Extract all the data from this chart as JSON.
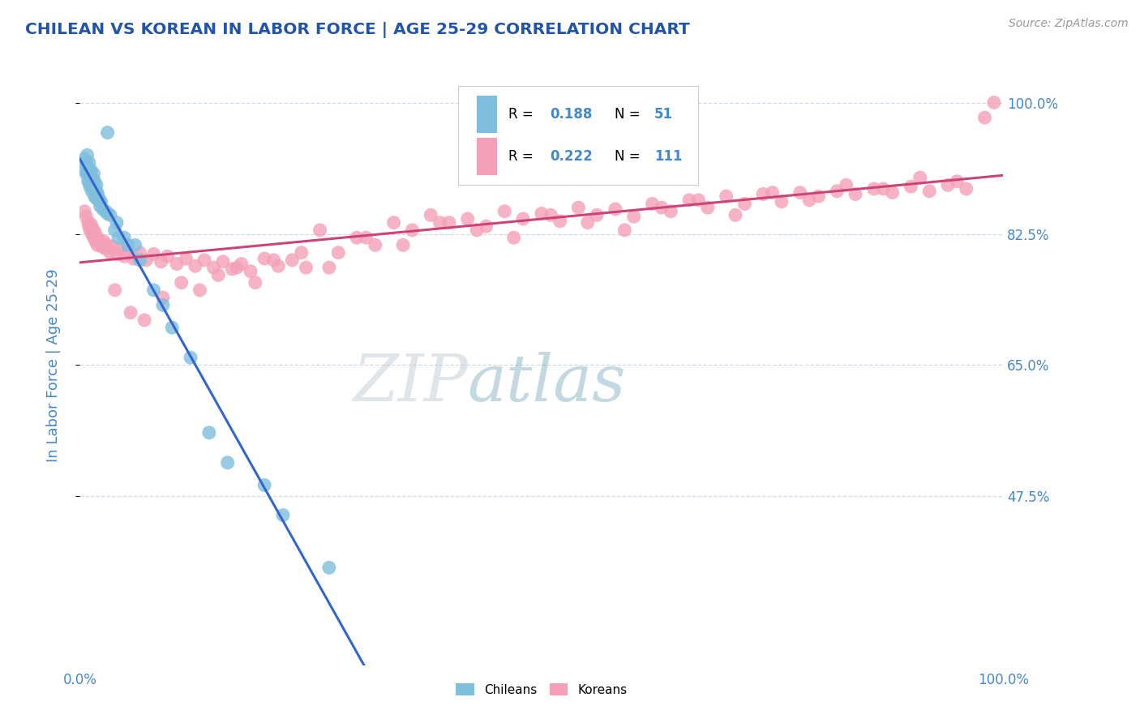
{
  "title": "CHILEAN VS KOREAN IN LABOR FORCE | AGE 25-29 CORRELATION CHART",
  "source_text": "Source: ZipAtlas.com",
  "ylabel": "In Labor Force | Age 25-29",
  "xlim": [
    0.0,
    1.0
  ],
  "ylim": [
    0.25,
    1.05
  ],
  "yticks": [
    0.475,
    0.65,
    0.825,
    1.0
  ],
  "ytick_labels": [
    "47.5%",
    "65.0%",
    "82.5%",
    "100.0%"
  ],
  "xtick_labels": [
    "0.0%",
    "100.0%"
  ],
  "xticks": [
    0.0,
    1.0
  ],
  "watermark_zip": "ZIP",
  "watermark_atlas": "atlas",
  "legend_r_chilean": "0.188",
  "legend_n_chilean": "51",
  "legend_r_korean": "0.222",
  "legend_n_korean": "111",
  "chilean_color": "#7fbfdd",
  "korean_color": "#f4a0b8",
  "chilean_line_color": "#3366cc",
  "korean_line_color": "#cc4477",
  "title_color": "#2255aa",
  "axis_label_color": "#4488cc",
  "tick_label_color": "#4488cc",
  "background_color": "#ffffff",
  "grid_color": "#c8d8e8",
  "chilean_x": [
    0.005,
    0.005,
    0.007,
    0.007,
    0.008,
    0.008,
    0.009,
    0.009,
    0.01,
    0.01,
    0.01,
    0.011,
    0.011,
    0.012,
    0.012,
    0.013,
    0.013,
    0.014,
    0.015,
    0.015,
    0.016,
    0.016,
    0.017,
    0.018,
    0.018,
    0.019,
    0.02,
    0.021,
    0.022,
    0.023,
    0.025,
    0.028,
    0.03,
    0.033,
    0.038,
    0.04,
    0.042,
    0.048,
    0.052,
    0.06,
    0.065,
    0.08,
    0.09,
    0.1,
    0.12,
    0.14,
    0.16,
    0.2,
    0.22,
    0.27,
    0.03
  ],
  "chilean_y": [
    0.925,
    0.91,
    0.92,
    0.905,
    0.93,
    0.915,
    0.905,
    0.895,
    0.92,
    0.91,
    0.895,
    0.905,
    0.888,
    0.91,
    0.892,
    0.9,
    0.882,
    0.895,
    0.905,
    0.885,
    0.895,
    0.875,
    0.882,
    0.89,
    0.872,
    0.88,
    0.875,
    0.87,
    0.862,
    0.868,
    0.858,
    0.855,
    0.852,
    0.85,
    0.83,
    0.84,
    0.82,
    0.82,
    0.81,
    0.81,
    0.79,
    0.75,
    0.73,
    0.7,
    0.66,
    0.56,
    0.52,
    0.49,
    0.45,
    0.38,
    0.96
  ],
  "korean_x": [
    0.005,
    0.007,
    0.009,
    0.01,
    0.011,
    0.012,
    0.013,
    0.014,
    0.015,
    0.016,
    0.017,
    0.018,
    0.019,
    0.02,
    0.022,
    0.024,
    0.026,
    0.028,
    0.03,
    0.033,
    0.036,
    0.04,
    0.044,
    0.048,
    0.052,
    0.058,
    0.065,
    0.072,
    0.08,
    0.088,
    0.095,
    0.105,
    0.115,
    0.125,
    0.135,
    0.145,
    0.155,
    0.165,
    0.175,
    0.185,
    0.2,
    0.215,
    0.23,
    0.245,
    0.26,
    0.28,
    0.3,
    0.32,
    0.34,
    0.36,
    0.38,
    0.4,
    0.42,
    0.44,
    0.46,
    0.48,
    0.5,
    0.52,
    0.54,
    0.56,
    0.58,
    0.6,
    0.62,
    0.64,
    0.66,
    0.68,
    0.7,
    0.72,
    0.74,
    0.76,
    0.78,
    0.8,
    0.82,
    0.84,
    0.86,
    0.88,
    0.9,
    0.92,
    0.94,
    0.96,
    0.038,
    0.055,
    0.07,
    0.09,
    0.11,
    0.13,
    0.15,
    0.17,
    0.19,
    0.21,
    0.24,
    0.27,
    0.31,
    0.35,
    0.39,
    0.43,
    0.47,
    0.51,
    0.55,
    0.59,
    0.63,
    0.67,
    0.71,
    0.75,
    0.79,
    0.83,
    0.87,
    0.91,
    0.95,
    0.98,
    0.99
  ],
  "korean_y": [
    0.855,
    0.848,
    0.84,
    0.835,
    0.83,
    0.838,
    0.825,
    0.832,
    0.82,
    0.828,
    0.815,
    0.822,
    0.81,
    0.818,
    0.812,
    0.808,
    0.815,
    0.805,
    0.81,
    0.8,
    0.808,
    0.798,
    0.805,
    0.795,
    0.802,
    0.792,
    0.8,
    0.79,
    0.798,
    0.788,
    0.795,
    0.785,
    0.792,
    0.782,
    0.79,
    0.78,
    0.788,
    0.778,
    0.785,
    0.775,
    0.792,
    0.782,
    0.79,
    0.78,
    0.83,
    0.8,
    0.82,
    0.81,
    0.84,
    0.83,
    0.85,
    0.84,
    0.845,
    0.835,
    0.855,
    0.845,
    0.852,
    0.842,
    0.86,
    0.85,
    0.858,
    0.848,
    0.865,
    0.855,
    0.87,
    0.86,
    0.875,
    0.865,
    0.878,
    0.868,
    0.88,
    0.875,
    0.882,
    0.878,
    0.885,
    0.88,
    0.888,
    0.882,
    0.89,
    0.885,
    0.75,
    0.72,
    0.71,
    0.74,
    0.76,
    0.75,
    0.77,
    0.78,
    0.76,
    0.79,
    0.8,
    0.78,
    0.82,
    0.81,
    0.84,
    0.83,
    0.82,
    0.85,
    0.84,
    0.83,
    0.86,
    0.87,
    0.85,
    0.88,
    0.87,
    0.89,
    0.885,
    0.9,
    0.895,
    0.98,
    1.0
  ]
}
